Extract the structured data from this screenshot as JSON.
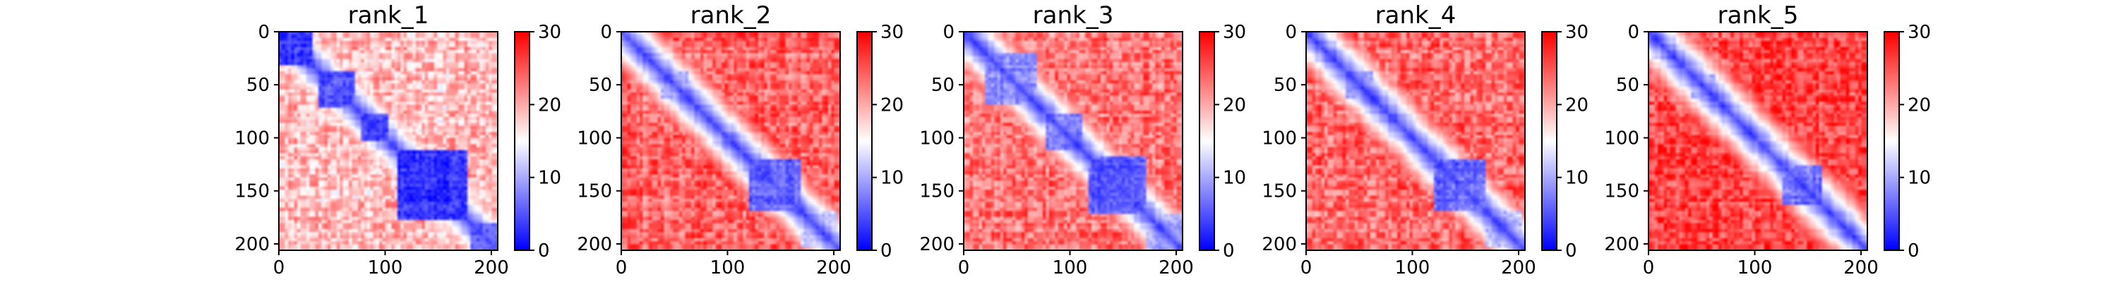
{
  "chart_data": [
    {
      "type": "heatmap",
      "title": "rank_1",
      "n": 206,
      "xlim": [
        0,
        206
      ],
      "ylim": [
        206,
        0
      ],
      "x_ticks": [
        0,
        100,
        200
      ],
      "y_ticks": [
        0,
        50,
        100,
        150,
        200
      ],
      "colorbar": {
        "range": [
          0,
          30
        ],
        "ticks": [
          0,
          10,
          20,
          30
        ],
        "colormap": "bwr"
      },
      "domains": [
        {
          "start": 0,
          "end": 28,
          "level": 3
        },
        {
          "start": 35,
          "end": 68,
          "level": 5
        },
        {
          "start": 75,
          "end": 100,
          "level": 4
        },
        {
          "start": 110,
          "end": 175,
          "level": 3
        },
        {
          "start": 178,
          "end": 206,
          "level": 6
        }
      ],
      "background_level": 19
    },
    {
      "type": "heatmap",
      "title": "rank_2",
      "n": 206,
      "xlim": [
        0,
        206
      ],
      "ylim": [
        206,
        0
      ],
      "x_ticks": [
        0,
        100,
        200
      ],
      "y_ticks": [
        0,
        50,
        100,
        150,
        200
      ],
      "colorbar": {
        "range": [
          0,
          30
        ],
        "ticks": [
          0,
          10,
          20,
          30
        ],
        "colormap": "bwr"
      },
      "domains": [
        {
          "start": 35,
          "end": 60,
          "level": 10
        },
        {
          "start": 120,
          "end": 165,
          "level": 6
        },
        {
          "start": 168,
          "end": 200,
          "level": 12
        }
      ],
      "background_level": 24
    },
    {
      "type": "heatmap",
      "title": "rank_3",
      "n": 206,
      "xlim": [
        0,
        206
      ],
      "ylim": [
        206,
        0
      ],
      "x_ticks": [
        0,
        100,
        200
      ],
      "y_ticks": [
        0,
        50,
        100,
        150,
        200
      ],
      "colorbar": {
        "range": [
          0,
          30
        ],
        "ticks": [
          0,
          10,
          20,
          30
        ],
        "colormap": "bwr"
      },
      "domains": [
        {
          "start": 20,
          "end": 65,
          "level": 8
        },
        {
          "start": 75,
          "end": 110,
          "level": 8
        },
        {
          "start": 115,
          "end": 170,
          "level": 5
        },
        {
          "start": 170,
          "end": 206,
          "level": 10
        }
      ],
      "background_level": 23
    },
    {
      "type": "heatmap",
      "title": "rank_4",
      "n": 206,
      "xlim": [
        0,
        206
      ],
      "ylim": [
        206,
        0
      ],
      "x_ticks": [
        0,
        100,
        200
      ],
      "y_ticks": [
        0,
        50,
        100,
        150,
        200
      ],
      "colorbar": {
        "range": [
          0,
          30
        ],
        "ticks": [
          0,
          10,
          20,
          30
        ],
        "colormap": "bwr"
      },
      "domains": [
        {
          "start": 35,
          "end": 60,
          "level": 10
        },
        {
          "start": 120,
          "end": 165,
          "level": 6
        },
        {
          "start": 168,
          "end": 200,
          "level": 11
        }
      ],
      "background_level": 24
    },
    {
      "type": "heatmap",
      "title": "rank_5",
      "n": 206,
      "xlim": [
        0,
        206
      ],
      "ylim": [
        206,
        0
      ],
      "x_ticks": [
        0,
        100,
        200
      ],
      "y_ticks": [
        0,
        50,
        100,
        150,
        200
      ],
      "colorbar": {
        "range": [
          0,
          30
        ],
        "ticks": [
          0,
          10,
          20,
          30
        ],
        "colormap": "bwr"
      },
      "domains": [
        {
          "start": 40,
          "end": 60,
          "level": 11
        },
        {
          "start": 125,
          "end": 160,
          "level": 7
        }
      ],
      "background_level": 26
    }
  ]
}
